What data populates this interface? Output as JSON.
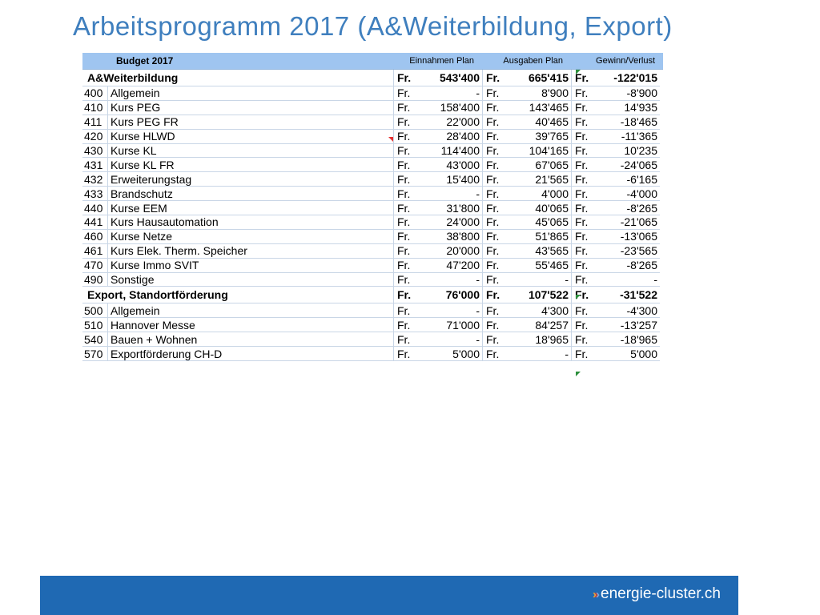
{
  "title": "Arbeitsprogramm 2017 (A&Weiterbildung, Export)",
  "header": {
    "budget": "Budget 2017",
    "income": "Einnahmen Plan",
    "expense": "Ausgaben Plan",
    "profit": "Gewinn/Verlust"
  },
  "currency": "Fr.",
  "groups": [
    {
      "name": "A&Weiterbildung",
      "income": "543'400",
      "expense": "665'415",
      "profit": "-122'015",
      "rows": [
        {
          "acc": "400",
          "name": "Allgemein",
          "income": "-",
          "expense": "8'900",
          "profit": "-8'900"
        },
        {
          "acc": "410",
          "name": "Kurs PEG",
          "income": "158'400",
          "expense": "143'465",
          "profit": "14'935"
        },
        {
          "acc": "411",
          "name": "Kurs PEG FR",
          "income": "22'000",
          "expense": "40'465",
          "profit": "-18'465"
        },
        {
          "acc": "420",
          "name": "Kurse HLWD",
          "income": "28'400",
          "expense": "39'765",
          "profit": "-11'365"
        },
        {
          "acc": "430",
          "name": "Kurse KL",
          "income": "114'400",
          "expense": "104'165",
          "profit": "10'235"
        },
        {
          "acc": "431",
          "name": "Kurse KL FR",
          "income": "43'000",
          "expense": "67'065",
          "profit": "-24'065"
        },
        {
          "acc": "432",
          "name": "Erweiterungstag",
          "income": "15'400",
          "expense": "21'565",
          "profit": "-6'165"
        },
        {
          "acc": "433",
          "name": "Brandschutz",
          "income": "-",
          "expense": "4'000",
          "profit": "-4'000"
        },
        {
          "acc": "440",
          "name": "Kurse EEM",
          "income": "31'800",
          "expense": "40'065",
          "profit": "-8'265"
        },
        {
          "acc": "441",
          "name": "Kurs Hausautomation",
          "income": "24'000",
          "expense": "45'065",
          "profit": "-21'065"
        },
        {
          "acc": "460",
          "name": "Kurse Netze",
          "income": "38'800",
          "expense": "51'865",
          "profit": "-13'065"
        },
        {
          "acc": "461",
          "name": "Kurs Elek. Therm. Speicher",
          "income": "20'000",
          "expense": "43'565",
          "profit": "-23'565"
        },
        {
          "acc": "470",
          "name": "Kurse Immo SVIT",
          "income": "47'200",
          "expense": "55'465",
          "profit": "-8'265"
        },
        {
          "acc": "490",
          "name": "Sonstige",
          "income": "-",
          "expense": "-",
          "profit": "-"
        }
      ]
    },
    {
      "name": "Export,  Standortförderung",
      "income": "76'000",
      "expense": "107'522",
      "profit": "-31'522",
      "rows": [
        {
          "acc": "500",
          "name": "Allgemein",
          "income": "-",
          "expense": "4'300",
          "profit": "-4'300"
        },
        {
          "acc": "510",
          "name": "Hannover Messe",
          "income": "71'000",
          "expense": "84'257",
          "profit": "-13'257"
        },
        {
          "acc": "540",
          "name": "Bauen + Wohnen",
          "income": "-",
          "expense": "18'965",
          "profit": "-18'965"
        },
        {
          "acc": "570",
          "name": "Exportförderung CH-D",
          "income": "5'000",
          "expense": "-",
          "profit": "5'000"
        }
      ]
    }
  ],
  "footer": {
    "logo_text": "energie-cluster.ch",
    "chevron_colors": [
      "#e8a33a",
      "#c23a3a",
      "#7fa9d9"
    ],
    "bar_color": "#1f69b3"
  }
}
